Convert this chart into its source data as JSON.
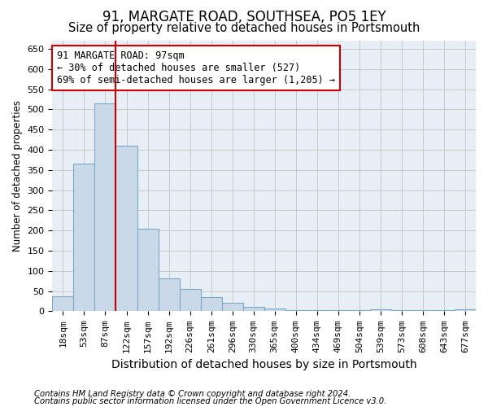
{
  "title": "91, MARGATE ROAD, SOUTHSEA, PO5 1EY",
  "subtitle": "Size of property relative to detached houses in Portsmouth",
  "xlabel": "Distribution of detached houses by size in Portsmouth",
  "ylabel": "Number of detached properties",
  "bar_values": [
    37,
    365,
    515,
    410,
    205,
    82,
    55,
    35,
    22,
    11,
    7,
    2,
    2,
    2,
    2,
    5,
    2,
    2,
    2,
    5
  ],
  "bar_labels": [
    "18sqm",
    "53sqm",
    "87sqm",
    "122sqm",
    "157sqm",
    "192sqm",
    "226sqm",
    "261sqm",
    "296sqm",
    "330sqm",
    "365sqm",
    "400sqm",
    "434sqm",
    "469sqm",
    "504sqm",
    "539sqm",
    "573sqm",
    "608sqm",
    "643sqm",
    "677sqm"
  ],
  "bar_color": "#c9d9e8",
  "bar_edge_color": "#7aaac8",
  "bar_edge_width": 0.8,
  "grid_color": "#c8c8c8",
  "background_color": "#e8eef5",
  "property_bin_index": 2,
  "red_line_color": "#cc0000",
  "annotation_text": "91 MARGATE ROAD: 97sqm\n← 30% of detached houses are smaller (527)\n69% of semi-detached houses are larger (1,205) →",
  "annotation_box_color": "white",
  "annotation_box_edge_color": "#cc0000",
  "footnote1": "Contains HM Land Registry data © Crown copyright and database right 2024.",
  "footnote2": "Contains public sector information licensed under the Open Government Licence v3.0.",
  "ylim": [
    0,
    670
  ],
  "yticks": [
    0,
    50,
    100,
    150,
    200,
    250,
    300,
    350,
    400,
    450,
    500,
    550,
    600,
    650
  ],
  "title_fontsize": 12,
  "subtitle_fontsize": 10.5,
  "xlabel_fontsize": 10,
  "ylabel_fontsize": 8.5,
  "tick_fontsize": 8,
  "footnote_fontsize": 7.2
}
